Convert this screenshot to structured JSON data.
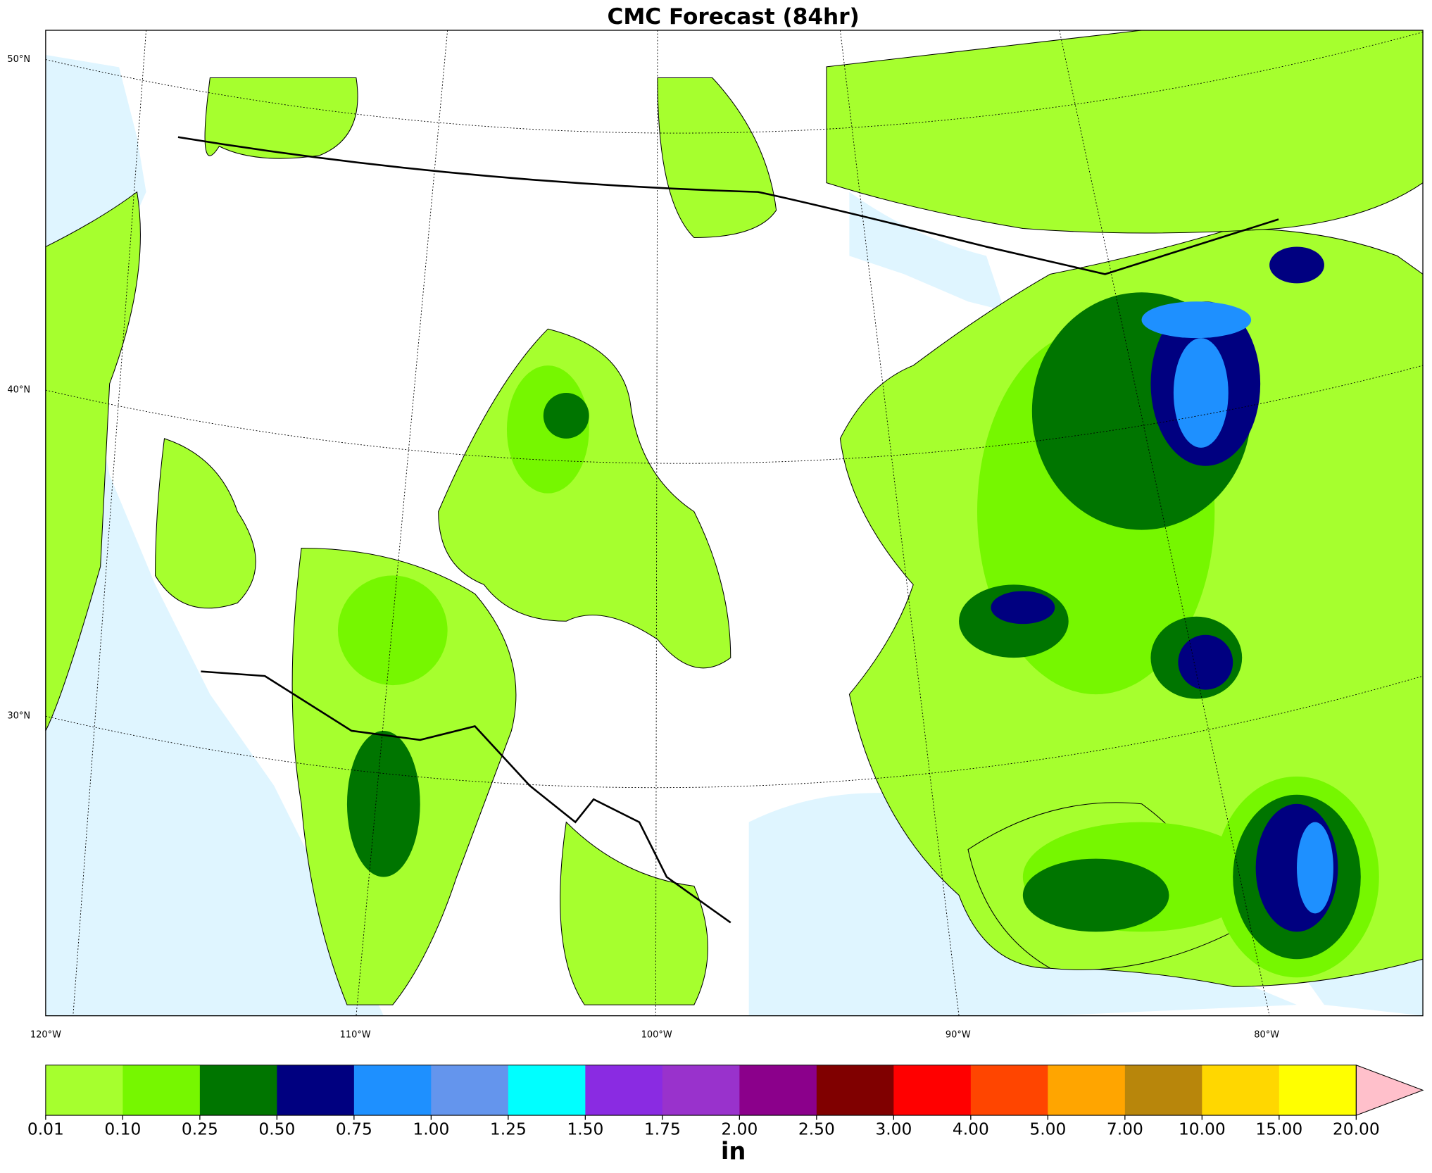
{
  "title": "CMC Forecast (84hr)",
  "latitude_labels": [
    "50°N",
    "40°N",
    "30°N"
  ],
  "longitude_labels": [
    "120°W",
    "110°W",
    "100°W",
    "90°W",
    "80°W"
  ],
  "colorbar": {
    "labels": [
      "0.01",
      "0.10",
      "0.25",
      "0.50",
      "0.75",
      "1.00",
      "1.25",
      "1.50",
      "1.75",
      "2.00",
      "2.50",
      "3.00",
      "4.00",
      "5.00",
      "7.00",
      "10.00",
      "15.00",
      "20.00"
    ],
    "colors": [
      "#a6ff2e",
      "#76f700",
      "#007500",
      "#000080",
      "#1e90ff",
      "#6495ed",
      "#00ffff",
      "#8a2be2",
      "#9932cc",
      "#8b008b",
      "#800000",
      "#ff0000",
      "#ff4500",
      "#ffa500",
      "#b8860b",
      "#ffd700",
      "#ffff00"
    ],
    "extend_color": "#ffc0cb",
    "unit": "in"
  }
}
